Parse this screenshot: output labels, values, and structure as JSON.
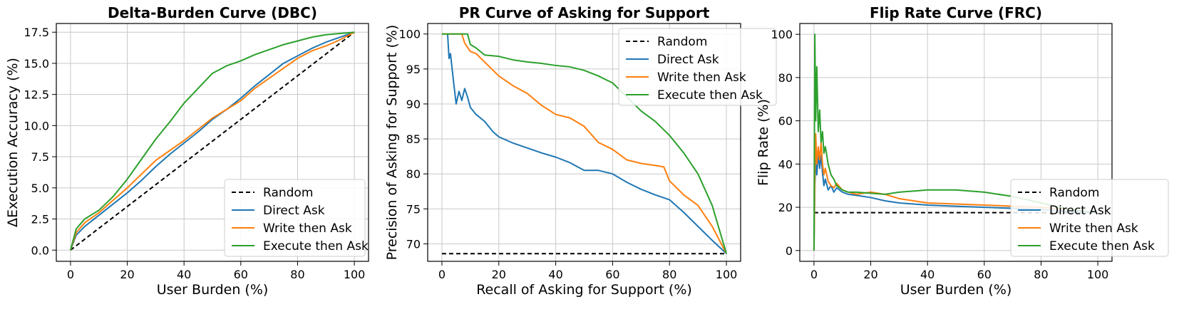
{
  "chart_data": [
    {
      "type": "line",
      "title": "Delta-Burden Curve (DBC)",
      "xlabel": "User Burden (%)",
      "ylabel": "ΔExecution Accuracy (%)",
      "xlim": [
        -5,
        105
      ],
      "ylim": [
        -0.9,
        18.2
      ],
      "xticks": [
        0,
        20,
        40,
        60,
        80,
        100
      ],
      "yticks": [
        0.0,
        2.5,
        5.0,
        7.5,
        10.0,
        12.5,
        15.0,
        17.5
      ],
      "ytick_labels": [
        "0.0",
        "2.5",
        "5.0",
        "7.5",
        "10.0",
        "12.5",
        "15.0",
        "17.5"
      ],
      "grid": true,
      "legend_position": "lower-right",
      "series": [
        {
          "name": "Random",
          "color": "#000000",
          "dash": true,
          "x": [
            0,
            100
          ],
          "y": [
            0,
            17.5
          ]
        },
        {
          "name": "Direct Ask",
          "color": "#1f77b4",
          "dash": false,
          "x": [
            0,
            2,
            5,
            10,
            15,
            20,
            25,
            30,
            35,
            40,
            45,
            50,
            55,
            60,
            65,
            70,
            75,
            80,
            85,
            90,
            95,
            100
          ],
          "y": [
            0,
            1.2,
            1.9,
            2.8,
            3.7,
            4.6,
            5.6,
            6.7,
            7.7,
            8.6,
            9.5,
            10.5,
            11.3,
            12.2,
            13.2,
            14.1,
            15.0,
            15.6,
            16.2,
            16.7,
            17.1,
            17.5
          ]
        },
        {
          "name": "Write then Ask",
          "color": "#ff7f0e",
          "dash": false,
          "x": [
            0,
            2,
            5,
            10,
            15,
            20,
            25,
            30,
            35,
            40,
            45,
            50,
            55,
            60,
            65,
            70,
            75,
            80,
            85,
            90,
            95,
            100
          ],
          "y": [
            0,
            1.4,
            2.2,
            3.0,
            4.0,
            5.0,
            6.1,
            7.2,
            8.0,
            8.8,
            9.7,
            10.6,
            11.3,
            12.0,
            13.0,
            13.8,
            14.6,
            15.4,
            16.0,
            16.4,
            16.9,
            17.5
          ]
        },
        {
          "name": "Execute then Ask",
          "color": "#2ca02c",
          "dash": false,
          "x": [
            0,
            2,
            5,
            10,
            15,
            20,
            25,
            30,
            35,
            40,
            45,
            50,
            55,
            60,
            65,
            70,
            75,
            80,
            85,
            90,
            95,
            100
          ],
          "y": [
            0,
            1.7,
            2.5,
            3.2,
            4.3,
            5.7,
            7.3,
            8.9,
            10.3,
            11.8,
            13.0,
            14.2,
            14.8,
            15.2,
            15.7,
            16.1,
            16.5,
            16.8,
            17.1,
            17.3,
            17.4,
            17.5
          ]
        }
      ]
    },
    {
      "type": "line",
      "title": "PR Curve of Asking for Support",
      "xlabel": "Recall of Asking for Support (%)",
      "ylabel": "Precision of Asking for Support (%)",
      "xlim": [
        -5,
        105
      ],
      "ylim": [
        67.5,
        101.5
      ],
      "xticks": [
        0,
        20,
        40,
        60,
        80,
        100
      ],
      "yticks": [
        70,
        75,
        80,
        85,
        90,
        95,
        100
      ],
      "ytick_labels": [
        "70",
        "75",
        "80",
        "85",
        "90",
        "95",
        "100"
      ],
      "grid": true,
      "legend_position": "upper-right",
      "series": [
        {
          "name": "Random",
          "color": "#000000",
          "dash": true,
          "x": [
            0,
            100
          ],
          "y": [
            68.6,
            68.6
          ]
        },
        {
          "name": "Direct Ask",
          "color": "#1f77b4",
          "dash": false,
          "x": [
            2,
            2.5,
            3,
            4,
            5,
            6,
            7,
            8,
            9,
            10,
            12,
            15,
            18,
            20,
            25,
            30,
            35,
            40,
            45,
            50,
            55,
            60,
            65,
            70,
            75,
            80,
            85,
            90,
            95,
            100
          ],
          "y": [
            100,
            96.5,
            97.2,
            93.5,
            90.0,
            91.8,
            90.5,
            92.2,
            91.0,
            89.5,
            88.5,
            87.5,
            86.0,
            85.3,
            84.4,
            83.7,
            83.0,
            82.4,
            81.6,
            80.5,
            80.5,
            80.0,
            78.8,
            77.8,
            77.0,
            76.3,
            74.5,
            72.5,
            70.5,
            68.6
          ]
        },
        {
          "name": "Write then Ask",
          "color": "#ff7f0e",
          "dash": false,
          "x": [
            0,
            5,
            7,
            8,
            10,
            12,
            15,
            20,
            25,
            30,
            35,
            40,
            45,
            50,
            55,
            60,
            65,
            70,
            75,
            78,
            80,
            85,
            90,
            95,
            100
          ],
          "y": [
            100,
            100,
            100,
            98.7,
            97.5,
            97.2,
            96.0,
            94.0,
            92.6,
            91.5,
            89.8,
            88.5,
            88.0,
            86.8,
            84.5,
            83.5,
            82.0,
            81.5,
            81.2,
            81.0,
            79.0,
            77.0,
            75.5,
            72.5,
            68.6
          ]
        },
        {
          "name": "Execute then Ask",
          "color": "#2ca02c",
          "dash": false,
          "x": [
            0,
            5,
            9,
            10,
            12,
            15,
            20,
            25,
            30,
            35,
            40,
            45,
            50,
            55,
            60,
            65,
            70,
            75,
            80,
            85,
            90,
            95,
            100
          ],
          "y": [
            100,
            100,
            100,
            98.5,
            98.0,
            97.0,
            96.8,
            96.3,
            96.0,
            95.8,
            95.5,
            95.3,
            94.8,
            94.0,
            93.0,
            91.0,
            89.0,
            87.5,
            85.5,
            83.0,
            80.0,
            75.5,
            68.6
          ]
        }
      ]
    },
    {
      "type": "line",
      "title": "Flip Rate Curve (FRC)",
      "xlabel": "User Burden (%)",
      "ylabel": "Flip Rate (%)",
      "xlim": [
        -5,
        105
      ],
      "ylim": [
        -5,
        105
      ],
      "xticks": [
        0,
        20,
        40,
        60,
        80,
        100
      ],
      "yticks": [
        0,
        20,
        40,
        60,
        80,
        100
      ],
      "ytick_labels": [
        "0",
        "20",
        "40",
        "60",
        "80",
        "100"
      ],
      "grid": true,
      "legend_position": "lower-right",
      "series": [
        {
          "name": "Random",
          "color": "#000000",
          "dash": true,
          "x": [
            0,
            100
          ],
          "y": [
            17.5,
            17.5
          ]
        },
        {
          "name": "Direct Ask",
          "color": "#1f77b4",
          "dash": false,
          "x": [
            0,
            0.3,
            0.6,
            1,
            1.5,
            2,
            2.5,
            3,
            3.5,
            4,
            5,
            6,
            7,
            8,
            10,
            12,
            15,
            20,
            25,
            30,
            40,
            50,
            60,
            70,
            80,
            90,
            100
          ],
          "y": [
            0,
            30,
            42,
            35,
            45,
            38,
            44,
            36,
            30,
            33,
            28,
            30,
            27,
            29,
            27,
            26,
            25.5,
            24.5,
            23,
            22,
            21,
            20.5,
            20,
            19.5,
            19,
            18,
            17.5
          ]
        },
        {
          "name": "Write then Ask",
          "color": "#ff7f0e",
          "dash": false,
          "x": [
            0,
            0.3,
            0.6,
            1,
            1.5,
            2,
            2.5,
            3,
            3.5,
            4,
            5,
            6,
            7,
            8,
            10,
            12,
            15,
            20,
            25,
            30,
            40,
            50,
            60,
            70,
            80,
            90,
            100
          ],
          "y": [
            0,
            35,
            54,
            40,
            48,
            42,
            50,
            40,
            35,
            38,
            32,
            30,
            29,
            31,
            28,
            27,
            26,
            27,
            26,
            24,
            22,
            21.5,
            21,
            20.5,
            20,
            19,
            17.5
          ]
        },
        {
          "name": "Execute then Ask",
          "color": "#2ca02c",
          "dash": false,
          "x": [
            0,
            0.3,
            0.6,
            1,
            1.5,
            2,
            2.5,
            3,
            3.5,
            4,
            5,
            6,
            7,
            8,
            10,
            12,
            15,
            20,
            25,
            30,
            35,
            40,
            50,
            60,
            70,
            80,
            90,
            100
          ],
          "y": [
            0,
            100,
            60,
            85,
            55,
            65,
            50,
            55,
            45,
            48,
            40,
            35,
            33,
            30,
            28,
            27,
            27,
            26.5,
            26,
            27,
            27.5,
            28,
            28,
            27,
            25,
            22,
            19,
            17.5
          ]
        }
      ]
    }
  ]
}
